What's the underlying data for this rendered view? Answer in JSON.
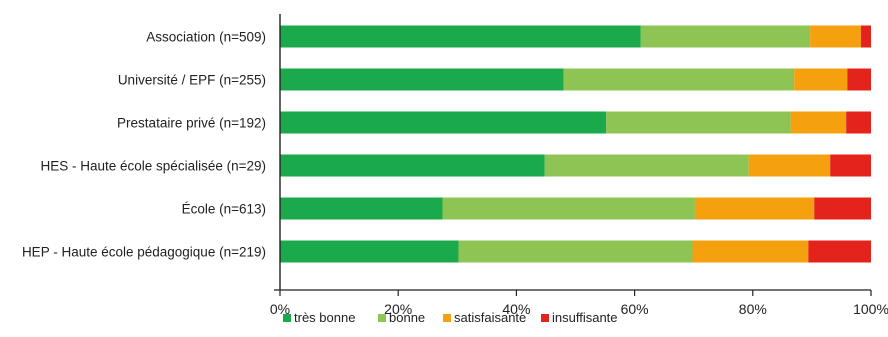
{
  "chart_data": {
    "type": "bar",
    "orientation": "horizontal",
    "stacked": true,
    "title": "",
    "xlabel": "",
    "ylabel": "",
    "xlim": [
      0,
      100
    ],
    "x_ticks": [
      0,
      20,
      40,
      60,
      80,
      100
    ],
    "x_tick_labels": [
      "0%",
      "20%",
      "40%",
      "60%",
      "80%",
      "100%"
    ],
    "grid": false,
    "legend_position": "bottom",
    "categories": [
      "Association (n=509)",
      "Université / EPF (n=255)",
      "Prestataire privé (n=192)",
      "HES - Haute école spécialisée (n=29)",
      "École (n=613)",
      "HEP - Haute école pédagogique (n=219)"
    ],
    "series": [
      {
        "name": "très bonne",
        "color": "#1aaa4b",
        "values": [
          61,
          48,
          55.2,
          44.8,
          27.5,
          30.2
        ]
      },
      {
        "name": "bonne",
        "color": "#8dc453",
        "values": [
          28.7,
          39,
          31.2,
          34.5,
          42.7,
          39.6
        ]
      },
      {
        "name": "satisfaisante",
        "color": "#f5a00f",
        "values": [
          8.6,
          9,
          9.4,
          13.8,
          20.2,
          19.6
        ]
      },
      {
        "name": "insuffisante",
        "color": "#e3231c",
        "values": [
          1.7,
          4,
          4.2,
          6.9,
          9.6,
          10.6
        ]
      }
    ]
  }
}
